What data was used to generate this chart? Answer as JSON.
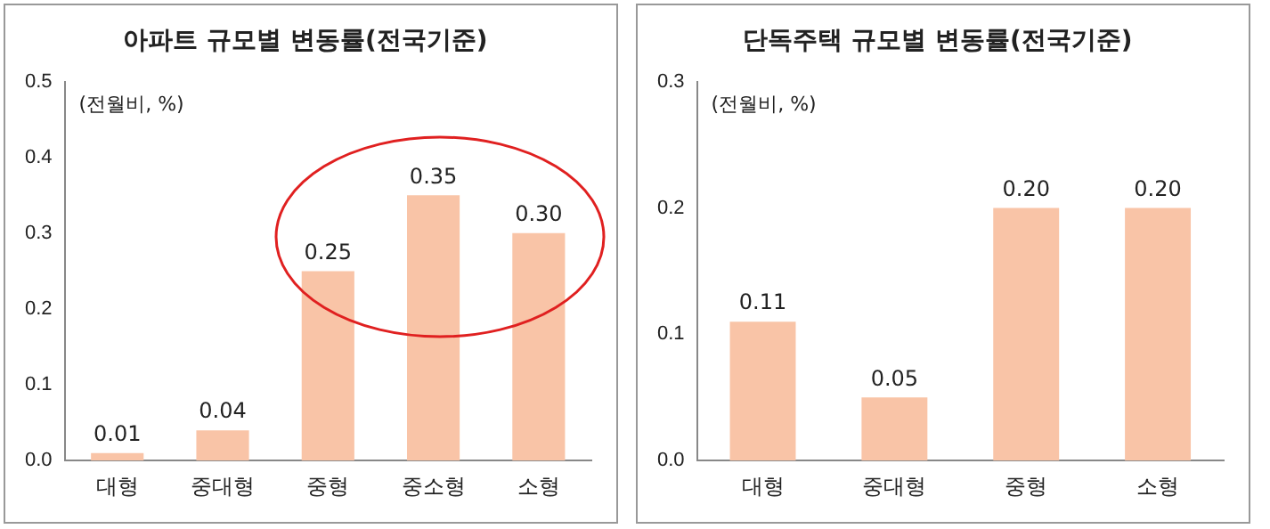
{
  "chart_data": [
    {
      "type": "bar",
      "title": "아파트 규모별 변동률(전국기준)",
      "annotations": [
        "(전월비, %)"
      ],
      "categories": [
        "대형",
        "중대형",
        "중형",
        "중소형",
        "소형"
      ],
      "values": [
        0.01,
        0.04,
        0.25,
        0.35,
        0.3
      ],
      "value_labels": [
        "0.01",
        "0.04",
        "0.25",
        "0.35",
        "0.30"
      ],
      "color": "#f9c4a7",
      "ylim": [
        0,
        0.5
      ],
      "yticks": [
        {
          "value": 0,
          "label": "0.0"
        },
        0.1,
        0.2,
        0.3,
        0.4,
        0.5
      ],
      "grid": false,
      "legend": false
    },
    {
      "type": "bar",
      "title": "단독주택 규모별 변동률(전국기준)",
      "annotations": [
        "(전월비, %)"
      ],
      "categories": [
        "대형",
        "중대형",
        "중형",
        "소형"
      ],
      "values": [
        0.11,
        0.05,
        0.2,
        0.2
      ],
      "value_labels": [
        "0.11",
        "0.05",
        "0.20",
        "0.20"
      ],
      "color": "#f9c4a7",
      "ylim": [
        0,
        0.3
      ],
      "yticks": [
        {
          "value": 0,
          "label": "0.0"
        },
        0.1,
        0.2,
        0.3
      ],
      "grid": false,
      "legend": false
    }
  ]
}
